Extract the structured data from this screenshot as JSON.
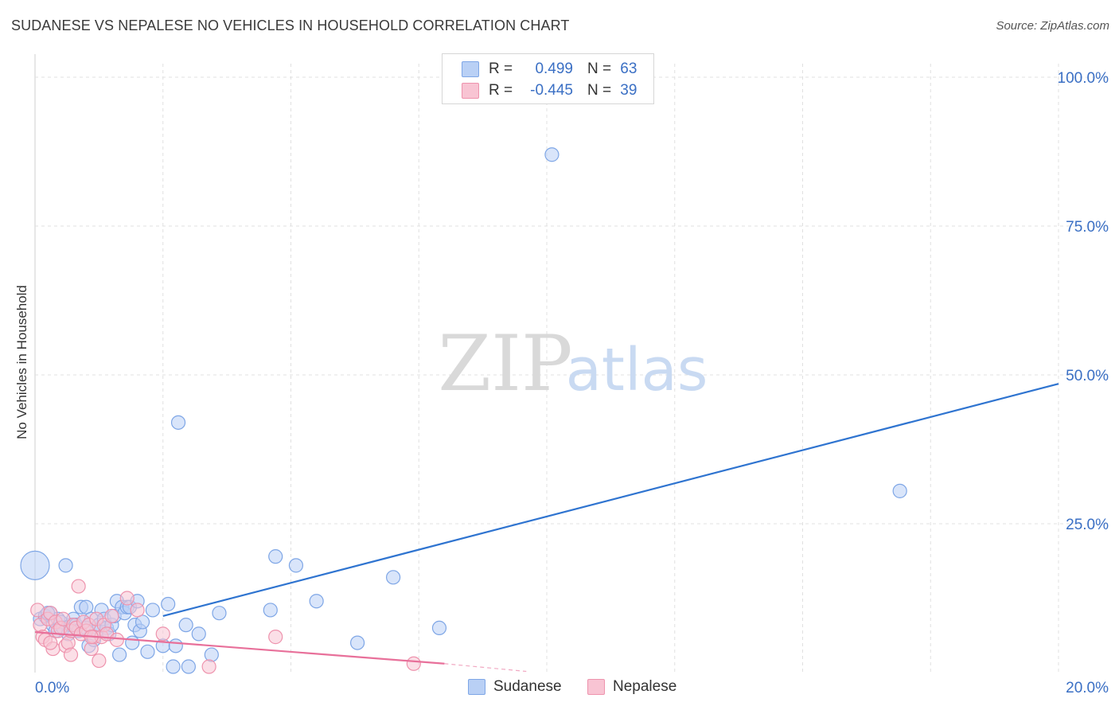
{
  "header": {
    "title": "SUDANESE VS NEPALESE NO VEHICLES IN HOUSEHOLD CORRELATION CHART",
    "source": "Source: ZipAtlas.com"
  },
  "legend": {
    "rows": [
      {
        "r_label": "R =",
        "r_value": "0.499",
        "n_label": "N =",
        "n_value": "63",
        "color": "#7ea6e6"
      },
      {
        "r_label": "R =",
        "r_value": "-0.445",
        "n_label": "N =",
        "n_value": "39",
        "color": "#ee93ad"
      }
    ]
  },
  "watermark": {
    "zip": "ZIP",
    "atlas": "atlas"
  },
  "chart_data": {
    "type": "scatter",
    "title": "SUDANESE VS NEPALESE NO VEHICLES IN HOUSEHOLD CORRELATION CHART",
    "xlabel": "",
    "ylabel": "No Vehicles in Household",
    "xlim": [
      0,
      20
    ],
    "ylim": [
      0,
      100
    ],
    "x_tick_labels": [
      "0.0%",
      "20.0%"
    ],
    "y_ticks": [
      25,
      50,
      75,
      100
    ],
    "y_tick_labels": [
      "25.0%",
      "50.0%",
      "75.0%",
      "100.0%"
    ],
    "grid": true,
    "series": [
      {
        "name": "Sudanese",
        "color": "#7ea6e6",
        "fill": "#b9d0f5",
        "trend_color": "#2f74d0",
        "trend": {
          "x": [
            2.5,
            20.0
          ],
          "y": [
            9.5,
            48.5
          ]
        },
        "points": [
          {
            "x": 0.0,
            "y": 18.0,
            "big": true
          },
          {
            "x": 0.6,
            "y": 18.0
          },
          {
            "x": 0.1,
            "y": 9.0
          },
          {
            "x": 0.2,
            "y": 9.5
          },
          {
            "x": 0.3,
            "y": 10.0
          },
          {
            "x": 0.35,
            "y": 8.0
          },
          {
            "x": 0.4,
            "y": 7.0
          },
          {
            "x": 0.45,
            "y": 9.0
          },
          {
            "x": 0.5,
            "y": 8.5
          },
          {
            "x": 0.55,
            "y": 7.5
          },
          {
            "x": 0.65,
            "y": 6.5
          },
          {
            "x": 0.7,
            "y": 8.0
          },
          {
            "x": 0.75,
            "y": 9.0
          },
          {
            "x": 0.8,
            "y": 8.0
          },
          {
            "x": 0.85,
            "y": 7.0
          },
          {
            "x": 0.9,
            "y": 11.0
          },
          {
            "x": 0.95,
            "y": 8.5
          },
          {
            "x": 1.0,
            "y": 11.0
          },
          {
            "x": 1.05,
            "y": 4.5
          },
          {
            "x": 1.1,
            "y": 9.0
          },
          {
            "x": 1.15,
            "y": 5.5
          },
          {
            "x": 1.2,
            "y": 7.0
          },
          {
            "x": 1.25,
            "y": 8.0
          },
          {
            "x": 1.3,
            "y": 10.5
          },
          {
            "x": 1.35,
            "y": 9.0
          },
          {
            "x": 1.4,
            "y": 7.5
          },
          {
            "x": 1.45,
            "y": 6.5
          },
          {
            "x": 1.5,
            "y": 8.0
          },
          {
            "x": 1.55,
            "y": 9.5
          },
          {
            "x": 1.6,
            "y": 12.0
          },
          {
            "x": 1.65,
            "y": 3.0
          },
          {
            "x": 1.7,
            "y": 11.0
          },
          {
            "x": 1.75,
            "y": 10.0
          },
          {
            "x": 1.8,
            "y": 11.0
          },
          {
            "x": 1.85,
            "y": 11.0
          },
          {
            "x": 1.9,
            "y": 5.0
          },
          {
            "x": 1.95,
            "y": 8.0
          },
          {
            "x": 2.0,
            "y": 12.0
          },
          {
            "x": 2.05,
            "y": 7.0
          },
          {
            "x": 2.1,
            "y": 8.5
          },
          {
            "x": 2.2,
            "y": 3.5
          },
          {
            "x": 2.3,
            "y": 10.5
          },
          {
            "x": 2.5,
            "y": 4.5
          },
          {
            "x": 2.6,
            "y": 11.5
          },
          {
            "x": 2.7,
            "y": 1.0
          },
          {
            "x": 2.75,
            "y": 4.5
          },
          {
            "x": 2.8,
            "y": 42.0
          },
          {
            "x": 2.95,
            "y": 8.0
          },
          {
            "x": 3.0,
            "y": 1.0
          },
          {
            "x": 3.2,
            "y": 6.5
          },
          {
            "x": 3.45,
            "y": 3.0
          },
          {
            "x": 3.6,
            "y": 10.0
          },
          {
            "x": 4.6,
            "y": 10.5
          },
          {
            "x": 4.7,
            "y": 19.5
          },
          {
            "x": 5.1,
            "y": 18.0
          },
          {
            "x": 5.5,
            "y": 12.0
          },
          {
            "x": 6.3,
            "y": 5.0
          },
          {
            "x": 7.0,
            "y": 16.0
          },
          {
            "x": 7.9,
            "y": 7.5
          },
          {
            "x": 10.1,
            "y": 87.0
          },
          {
            "x": 16.9,
            "y": 30.5
          },
          {
            "x": 0.25,
            "y": 10.0
          },
          {
            "x": 1.0,
            "y": 7.5
          }
        ]
      },
      {
        "name": "Nepalese",
        "color": "#ee93ad",
        "fill": "#f8c4d3",
        "trend_color": "#e8709a",
        "trend": {
          "x": [
            0.0,
            8.0
          ],
          "y": [
            6.8,
            1.5
          ]
        },
        "trend_ext": {
          "x": [
            8.0,
            9.6
          ],
          "y": [
            1.5,
            0.2
          ]
        },
        "points": [
          {
            "x": 0.05,
            "y": 10.5
          },
          {
            "x": 0.1,
            "y": 8.0
          },
          {
            "x": 0.15,
            "y": 6.0
          },
          {
            "x": 0.2,
            "y": 5.5
          },
          {
            "x": 0.25,
            "y": 9.0
          },
          {
            "x": 0.3,
            "y": 10.0
          },
          {
            "x": 0.35,
            "y": 4.0
          },
          {
            "x": 0.4,
            "y": 8.5
          },
          {
            "x": 0.45,
            "y": 7.0
          },
          {
            "x": 0.5,
            "y": 7.5
          },
          {
            "x": 0.55,
            "y": 9.0
          },
          {
            "x": 0.6,
            "y": 4.5
          },
          {
            "x": 0.65,
            "y": 5.0
          },
          {
            "x": 0.7,
            "y": 7.0
          },
          {
            "x": 0.75,
            "y": 8.0
          },
          {
            "x": 0.8,
            "y": 7.5
          },
          {
            "x": 0.85,
            "y": 14.5
          },
          {
            "x": 0.9,
            "y": 6.5
          },
          {
            "x": 0.95,
            "y": 8.5
          },
          {
            "x": 1.0,
            "y": 7.0
          },
          {
            "x": 1.05,
            "y": 8.0
          },
          {
            "x": 1.1,
            "y": 4.0
          },
          {
            "x": 1.15,
            "y": 6.0
          },
          {
            "x": 1.2,
            "y": 9.0
          },
          {
            "x": 1.25,
            "y": 2.0
          },
          {
            "x": 1.3,
            "y": 6.0
          },
          {
            "x": 1.35,
            "y": 8.0
          },
          {
            "x": 1.4,
            "y": 6.5
          },
          {
            "x": 1.5,
            "y": 9.5
          },
          {
            "x": 1.6,
            "y": 5.5
          },
          {
            "x": 1.8,
            "y": 12.5
          },
          {
            "x": 2.0,
            "y": 10.5
          },
          {
            "x": 2.5,
            "y": 6.5
          },
          {
            "x": 3.4,
            "y": 1.0
          },
          {
            "x": 4.7,
            "y": 6.0
          },
          {
            "x": 7.4,
            "y": 1.5
          },
          {
            "x": 0.3,
            "y": 5.0
          },
          {
            "x": 0.7,
            "y": 3.0
          },
          {
            "x": 1.1,
            "y": 6.0
          }
        ]
      }
    ]
  }
}
